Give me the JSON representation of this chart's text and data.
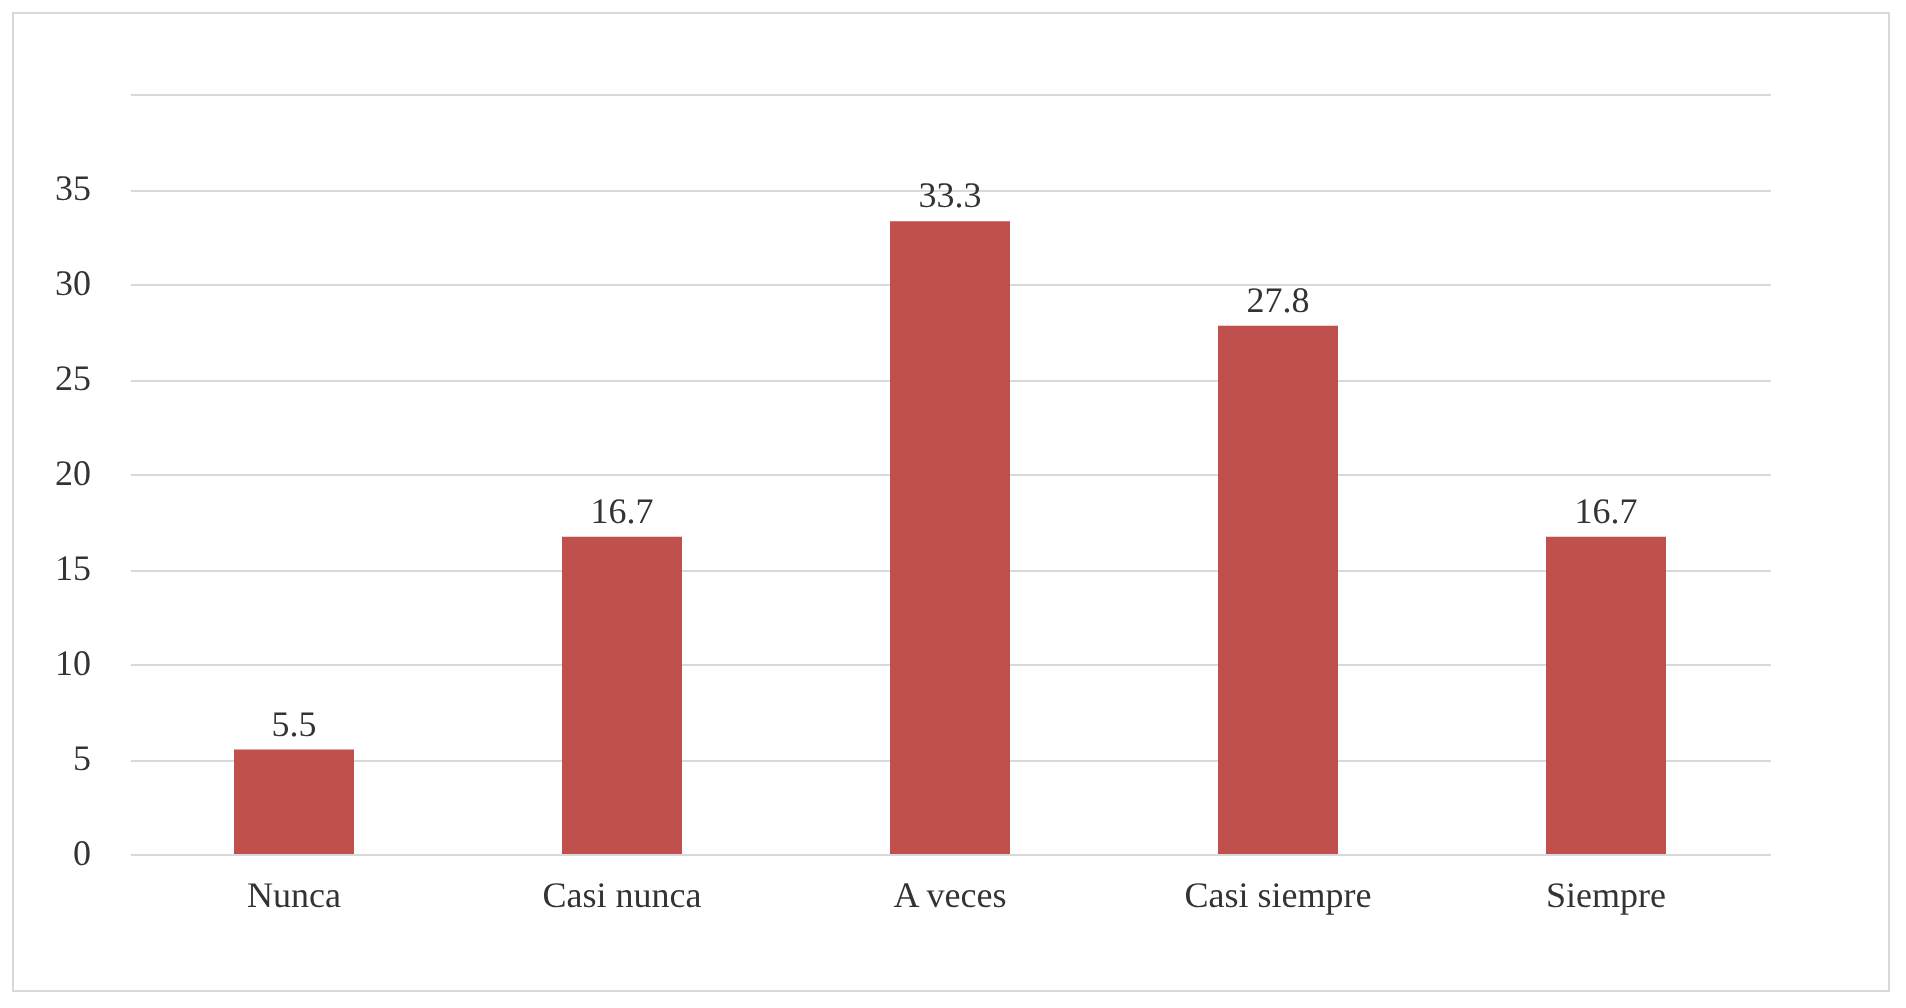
{
  "chart_data": {
    "type": "bar",
    "categories": [
      "Nunca",
      "Casi nunca",
      "A veces",
      "Casi siempre",
      "Siempre"
    ],
    "values": [
      5.5,
      16.7,
      33.3,
      27.8,
      16.7
    ],
    "color": "#c0504d",
    "ylim": [
      0,
      40
    ],
    "yticks": [
      0,
      5,
      10,
      15,
      20,
      25,
      30,
      35,
      {
        "value": 40,
        "label": null
      }
    ],
    "grid": "y",
    "data_labels": true
  }
}
